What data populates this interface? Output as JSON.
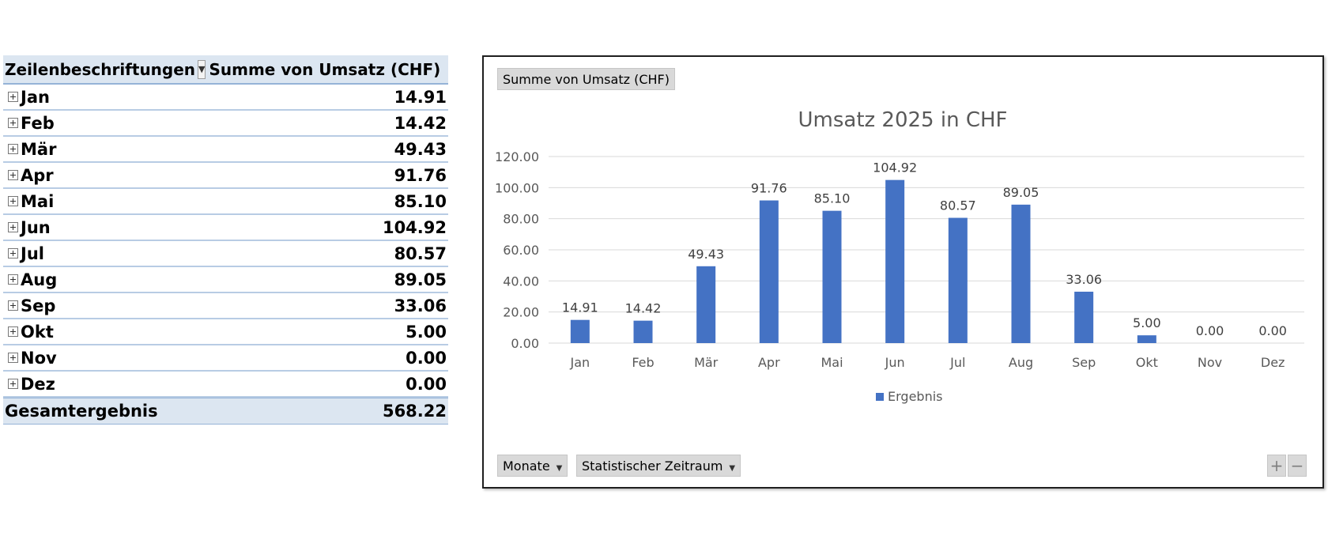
{
  "pivot": {
    "header_label": "Zeilenbeschriftungen",
    "header_value": "Summe von Umsatz (CHF)",
    "rows": [
      {
        "label": "Jan",
        "value": "14.91"
      },
      {
        "label": "Feb",
        "value": "14.42"
      },
      {
        "label": "Mär",
        "value": "49.43"
      },
      {
        "label": "Apr",
        "value": "91.76"
      },
      {
        "label": "Mai",
        "value": "85.10"
      },
      {
        "label": "Jun",
        "value": "104.92"
      },
      {
        "label": "Jul",
        "value": "80.57"
      },
      {
        "label": "Aug",
        "value": "89.05"
      },
      {
        "label": "Sep",
        "value": "33.06"
      },
      {
        "label": "Okt",
        "value": "5.00"
      },
      {
        "label": "Nov",
        "value": "0.00"
      },
      {
        "label": "Dez",
        "value": "0.00"
      }
    ],
    "total_label": "Gesamtergebnis",
    "total_value": "568.22"
  },
  "chart_buttons": {
    "value_field": "Summe  von Umsatz (CHF)",
    "axis_field_1": "Monate",
    "axis_field_2": "Statistischer Zeitraum",
    "zoom_in": "+",
    "zoom_out": "−"
  },
  "chart_data": {
    "type": "bar",
    "title": "Umsatz 2025 in CHF",
    "categories": [
      "Jan",
      "Feb",
      "Mär",
      "Apr",
      "Mai",
      "Jun",
      "Jul",
      "Aug",
      "Sep",
      "Okt",
      "Nov",
      "Dez"
    ],
    "series": [
      {
        "name": "Ergebnis",
        "values": [
          14.91,
          14.42,
          49.43,
          91.76,
          85.1,
          104.92,
          80.57,
          89.05,
          33.06,
          5.0,
          0.0,
          0.0
        ]
      }
    ],
    "data_labels": [
      "14.91",
      "14.42",
      "49.43",
      "91.76",
      "85.10",
      "104.92",
      "80.57",
      "89.05",
      "33.06",
      "5.00",
      "0.00",
      "0.00"
    ],
    "y_ticks": [
      "0.00",
      "20.00",
      "40.00",
      "60.00",
      "80.00",
      "100.00",
      "120.00"
    ],
    "ylim": [
      0,
      120
    ],
    "grid": true,
    "legend_position": "bottom",
    "bar_color": "#4472c4",
    "grid_color": "#d9d9d9"
  }
}
